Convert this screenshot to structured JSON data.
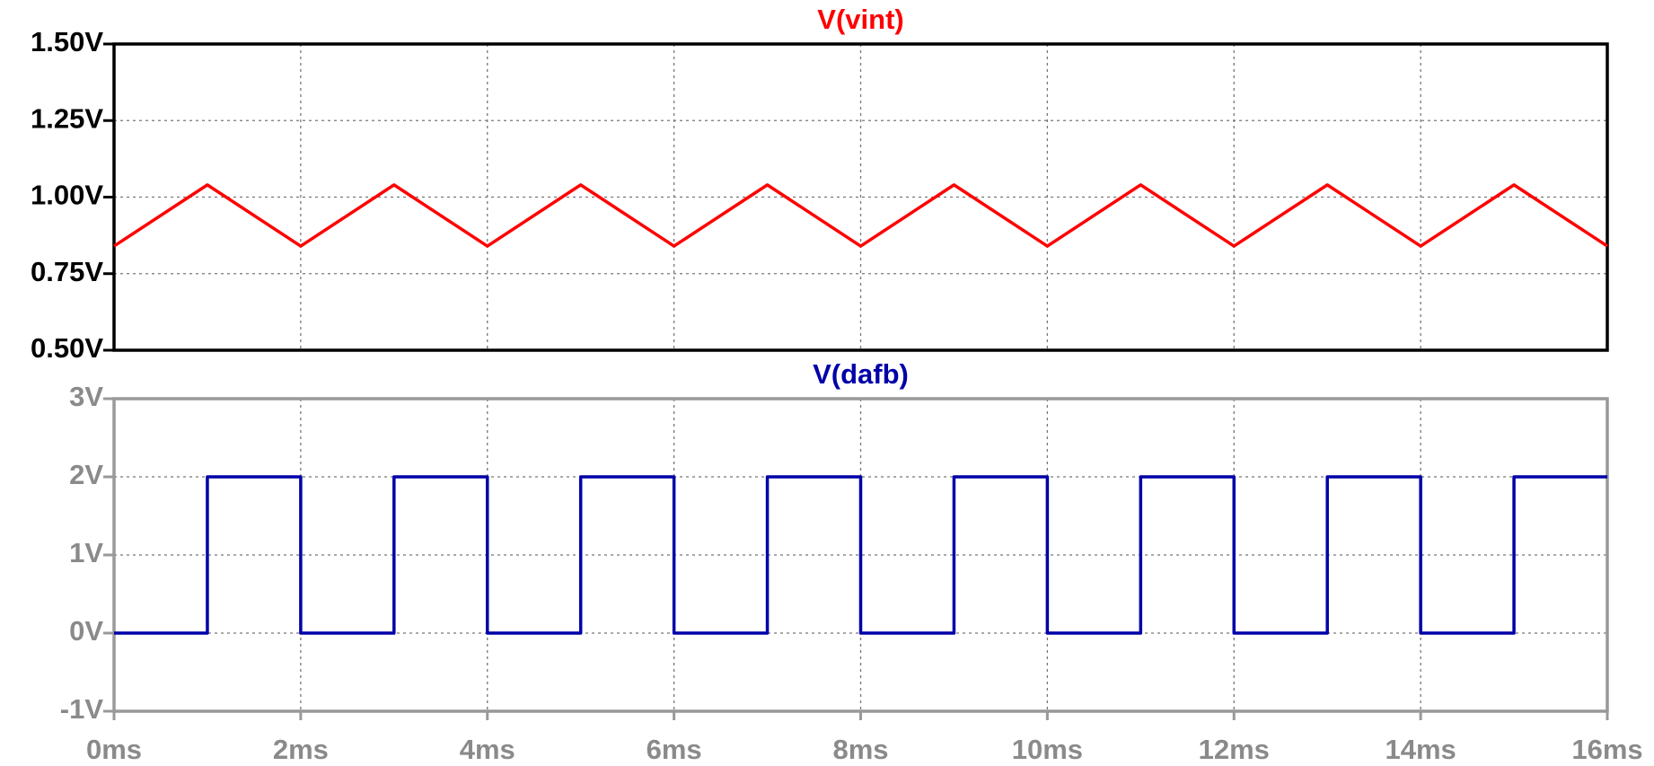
{
  "chart_data": [
    {
      "type": "line",
      "title": "V(vint)",
      "x": [
        0,
        1,
        2,
        3,
        4,
        5,
        6,
        7,
        8,
        9,
        10,
        11,
        12,
        13,
        14,
        15,
        16
      ],
      "series": [
        {
          "name": "V(vint)",
          "color": "#ff0000",
          "values": [
            0.84,
            1.04,
            0.84,
            1.04,
            0.84,
            1.04,
            0.84,
            1.04,
            0.84,
            1.04,
            0.84,
            1.04,
            0.84,
            1.04,
            0.84,
            1.04,
            0.84
          ]
        }
      ],
      "xlim": [
        0,
        16
      ],
      "ylim": [
        0.5,
        1.5
      ],
      "yticks": [
        {
          "value": 0.5,
          "label": "0.50V"
        },
        {
          "value": 0.75,
          "label": "0.75V"
        },
        {
          "value": 1.0,
          "label": "1.00V"
        },
        {
          "value": 1.25,
          "label": "1.25V"
        },
        {
          "value": 1.5,
          "label": "1.50V"
        }
      ],
      "grid": true
    },
    {
      "type": "line",
      "title": "V(dafb)",
      "x": [
        0,
        1,
        1,
        2,
        2,
        3,
        3,
        4,
        4,
        5,
        5,
        6,
        6,
        7,
        7,
        8,
        8,
        9,
        9,
        10,
        10,
        11,
        11,
        12,
        12,
        13,
        13,
        14,
        14,
        15,
        15,
        16
      ],
      "series": [
        {
          "name": "V(dafb)",
          "color": "#0000a8",
          "values": [
            0,
            0,
            2,
            2,
            0,
            0,
            2,
            2,
            0,
            0,
            2,
            2,
            0,
            0,
            2,
            2,
            0,
            0,
            2,
            2,
            0,
            0,
            2,
            2,
            0,
            0,
            2,
            2,
            0,
            0,
            2,
            2
          ]
        }
      ],
      "xlim": [
        0,
        16
      ],
      "xticks": [
        {
          "value": 0,
          "label": "0ms"
        },
        {
          "value": 2,
          "label": "2ms"
        },
        {
          "value": 4,
          "label": "4ms"
        },
        {
          "value": 6,
          "label": "6ms"
        },
        {
          "value": 8,
          "label": "8ms"
        },
        {
          "value": 10,
          "label": "10ms"
        },
        {
          "value": 12,
          "label": "12ms"
        },
        {
          "value": 14,
          "label": "14ms"
        },
        {
          "value": 16,
          "label": "16ms"
        }
      ],
      "ylim": [
        -1,
        3
      ],
      "yticks": [
        {
          "value": -1,
          "label": "-1V"
        },
        {
          "value": 0,
          "label": "0V"
        },
        {
          "value": 1,
          "label": "1V"
        },
        {
          "value": 2,
          "label": "2V"
        },
        {
          "value": 3,
          "label": "3V"
        }
      ],
      "grid": true
    }
  ]
}
